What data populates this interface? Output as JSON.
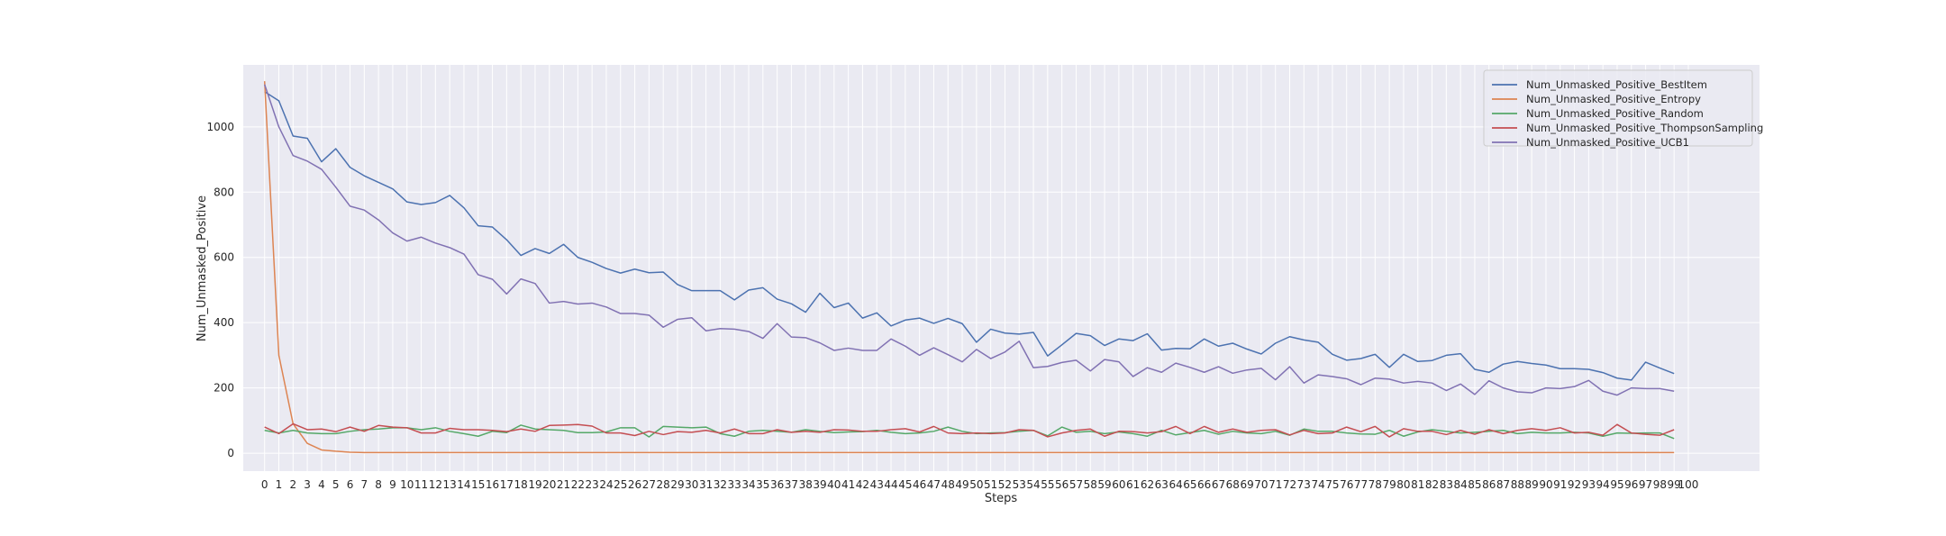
{
  "chart_data": {
    "type": "line",
    "xlabel": "Steps",
    "ylabel": "Num_Unmasked_Positive",
    "xlim": [
      -1.5,
      105
    ],
    "ylim": [
      -55,
      1190
    ],
    "x_ticks": [
      0,
      1,
      2,
      3,
      4,
      5,
      6,
      7,
      8,
      9,
      10,
      11,
      12,
      13,
      14,
      15,
      16,
      17,
      18,
      19,
      20,
      21,
      22,
      23,
      24,
      25,
      26,
      27,
      28,
      29,
      30,
      31,
      32,
      33,
      34,
      35,
      36,
      37,
      38,
      39,
      40,
      41,
      42,
      43,
      44,
      45,
      46,
      47,
      48,
      49,
      50,
      51,
      52,
      53,
      54,
      55,
      56,
      57,
      58,
      59,
      60,
      61,
      62,
      63,
      64,
      65,
      66,
      67,
      68,
      69,
      70,
      71,
      72,
      73,
      74,
      75,
      76,
      77,
      78,
      79,
      80,
      81,
      82,
      83,
      84,
      85,
      86,
      87,
      88,
      89,
      90,
      91,
      92,
      93,
      94,
      95,
      96,
      97,
      98,
      99,
      100
    ],
    "y_ticks": [
      0,
      200,
      400,
      600,
      800,
      1000
    ],
    "grid": true,
    "legend_position": "top-right",
    "series": [
      {
        "name": "Num_Unmasked_Positive_BestItem",
        "color": "#4c72b0",
        "values": [
          1108,
          1080,
          972,
          965,
          893,
          933,
          876,
          850,
          830,
          810,
          770,
          762,
          768,
          790,
          752,
          697,
          693,
          654,
          606,
          627,
          612,
          640,
          600,
          585,
          566,
          552,
          564,
          553,
          555,
          517,
          498,
          498,
          498,
          470,
          500,
          507,
          472,
          458,
          432,
          490,
          446,
          460,
          414,
          430,
          390,
          408,
          414,
          398,
          413,
          397,
          340,
          380,
          368,
          365,
          370,
          298,
          332,
          367,
          360,
          330,
          350,
          345,
          366,
          316,
          321,
          320,
          350,
          328,
          337,
          319,
          304,
          337,
          357,
          347,
          340,
          303,
          285,
          290,
          303,
          263,
          303,
          281,
          284,
          300,
          305,
          257,
          248,
          273,
          281,
          275,
          270,
          259,
          259,
          257,
          247,
          230,
          224,
          279,
          261,
          244
        ]
      },
      {
        "name": "Num_Unmasked_Positive_Entropy",
        "color": "#dd8452",
        "values": [
          1140,
          300,
          90,
          30,
          10,
          6,
          3,
          2,
          2,
          2,
          2,
          2,
          2,
          2,
          2,
          2,
          2,
          2,
          2,
          2,
          2,
          2,
          2,
          2,
          2,
          2,
          2,
          2,
          2,
          2,
          2,
          2,
          2,
          2,
          2,
          2,
          2,
          2,
          2,
          2,
          2,
          2,
          2,
          2,
          2,
          2,
          2,
          2,
          2,
          2,
          2,
          2,
          2,
          2,
          2,
          2,
          2,
          2,
          2,
          2,
          2,
          2,
          2,
          2,
          2,
          2,
          2,
          2,
          2,
          2,
          2,
          2,
          2,
          2,
          2,
          2,
          2,
          2,
          2,
          2,
          2,
          2,
          2,
          2,
          2,
          2,
          2,
          2,
          2,
          2,
          2,
          2,
          2,
          2,
          2,
          2,
          2,
          2,
          2,
          2
        ]
      },
      {
        "name": "Num_Unmasked_Positive_Random",
        "color": "#55a868",
        "values": [
          70,
          62,
          70,
          62,
          60,
          60,
          67,
          72,
          74,
          78,
          78,
          72,
          78,
          67,
          60,
          52,
          67,
          63,
          86,
          74,
          72,
          70,
          63,
          63,
          65,
          78,
          78,
          50,
          82,
          80,
          78,
          80,
          60,
          52,
          67,
          70,
          67,
          64,
          72,
          67,
          63,
          65,
          66,
          70,
          64,
          60,
          62,
          67,
          80,
          67,
          60,
          62,
          63,
          67,
          70,
          53,
          80,
          64,
          67,
          60,
          65,
          60,
          52,
          70,
          56,
          63,
          70,
          58,
          67,
          62,
          60,
          67,
          55,
          74,
          67,
          67,
          62,
          59,
          58,
          70,
          52,
          65,
          72,
          67,
          62,
          64,
          67,
          70,
          60,
          64,
          62,
          62,
          64,
          62,
          52,
          62,
          61,
          62,
          62,
          45
        ]
      },
      {
        "name": "Num_Unmasked_Positive_ThompsonSampling",
        "color": "#c44e52",
        "values": [
          80,
          60,
          90,
          72,
          74,
          66,
          80,
          67,
          85,
          80,
          78,
          62,
          62,
          76,
          72,
          72,
          70,
          66,
          74,
          67,
          85,
          86,
          88,
          83,
          62,
          62,
          54,
          67,
          57,
          66,
          64,
          70,
          62,
          74,
          60,
          60,
          72,
          64,
          67,
          64,
          72,
          71,
          67,
          67,
          72,
          75,
          65,
          82,
          62,
          60,
          62,
          60,
          62,
          72,
          70,
          50,
          62,
          70,
          74,
          52,
          67,
          66,
          62,
          66,
          82,
          60,
          82,
          64,
          74,
          64,
          70,
          72,
          56,
          70,
          60,
          62,
          80,
          66,
          82,
          50,
          75,
          67,
          67,
          57,
          70,
          58,
          72,
          60,
          70,
          75,
          70,
          78,
          62,
          64,
          55,
          88,
          62,
          58,
          55,
          72
        ]
      },
      {
        "name": "Num_Unmasked_Positive_UCB1",
        "color": "#8172b3",
        "values": [
          1130,
          1000,
          912,
          895,
          870,
          815,
          757,
          745,
          715,
          675,
          650,
          662,
          644,
          630,
          610,
          547,
          533,
          488,
          534,
          520,
          460,
          465,
          457,
          460,
          448,
          428,
          428,
          423,
          386,
          410,
          415,
          375,
          382,
          380,
          373,
          352,
          397,
          356,
          354,
          338,
          315,
          322,
          315,
          315,
          350,
          328,
          300,
          323,
          302,
          280,
          318,
          290,
          310,
          343,
          262,
          266,
          278,
          285,
          252,
          287,
          280,
          235,
          262,
          248,
          276,
          263,
          248,
          265,
          245,
          255,
          260,
          225,
          265,
          215,
          240,
          235,
          228,
          210,
          230,
          227,
          215,
          220,
          215,
          192,
          212,
          180,
          222,
          200,
          188,
          185,
          200,
          198,
          204,
          223,
          190,
          178,
          200,
          198,
          198,
          190
        ]
      }
    ]
  }
}
